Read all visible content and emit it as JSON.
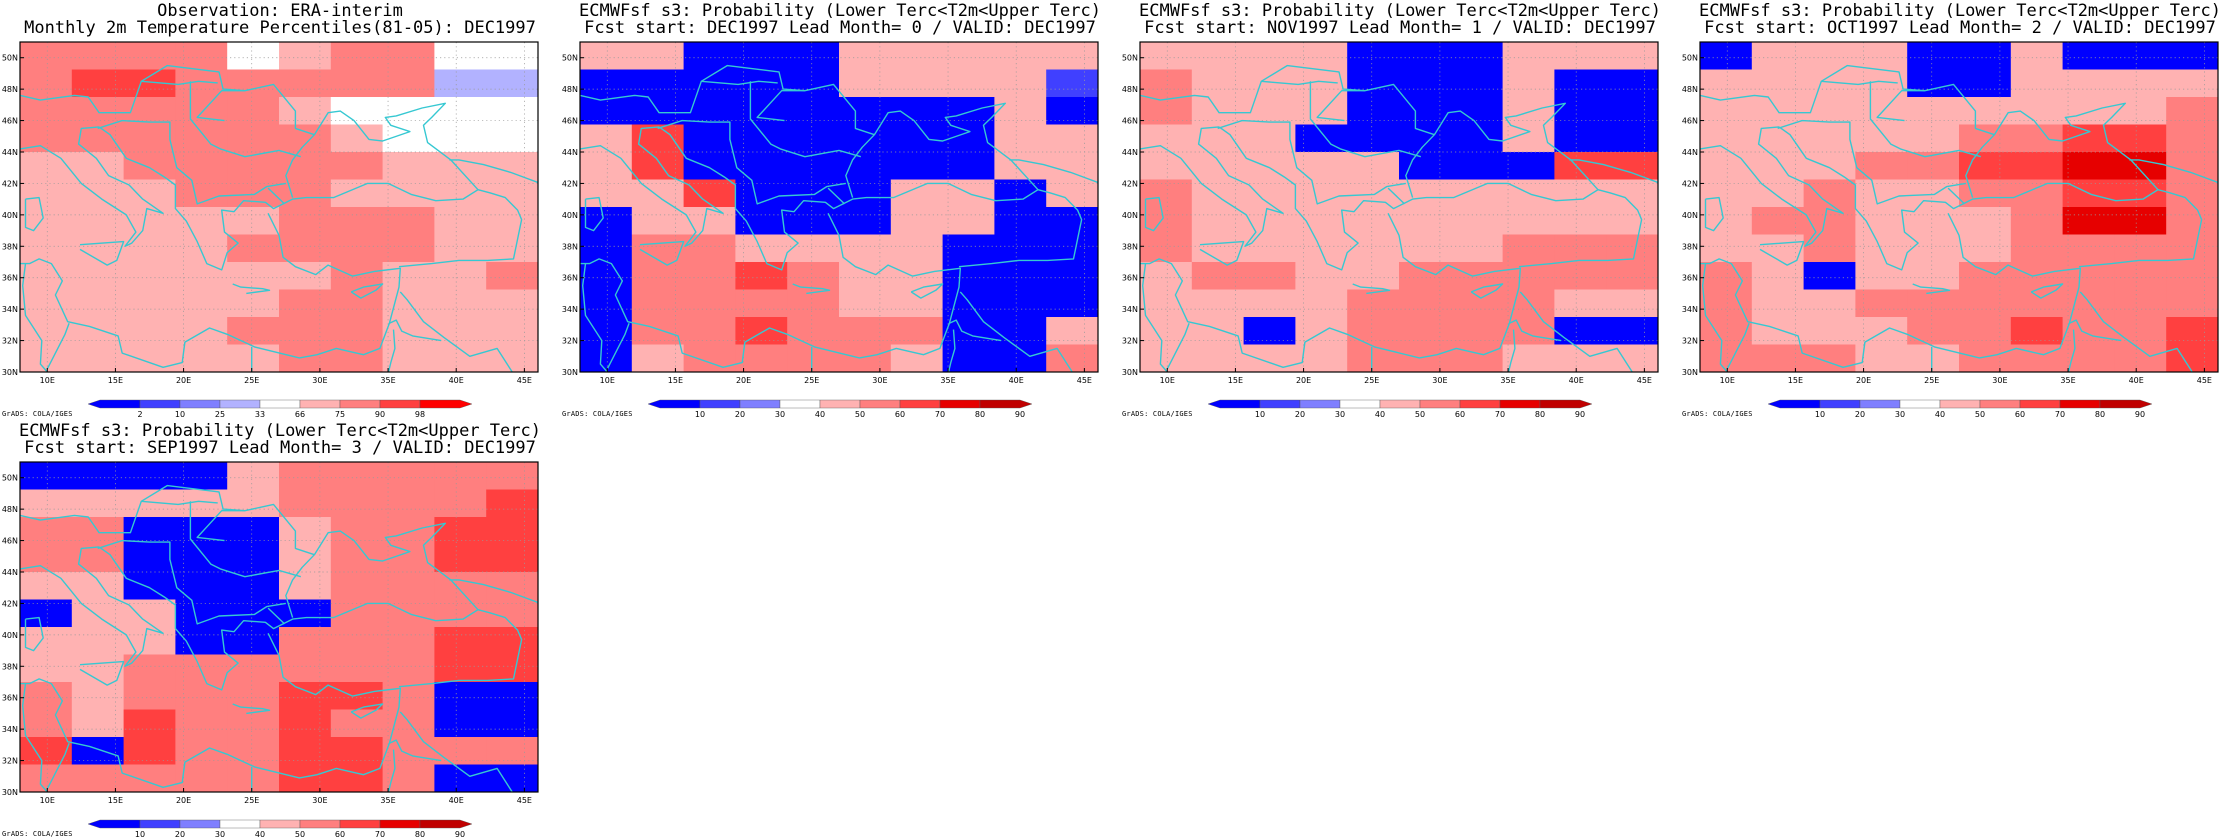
{
  "credit": "GrADS: COLA/IGES",
  "lon_labels": [
    "10E",
    "15E",
    "20E",
    "25E",
    "30E",
    "35E",
    "40E",
    "45E"
  ],
  "lat_labels": [
    "30N",
    "32N",
    "34N",
    "36N",
    "38N",
    "40N",
    "42N",
    "44N",
    "46N",
    "48N",
    "50N"
  ],
  "colors": {
    "coast": "#36c8d2",
    "obs_scale": [
      "#0000ff",
      "#4040ff",
      "#7f7fff",
      "#b2b2ff",
      "#ffffff",
      "#ffb2b2",
      "#ff7f7f",
      "#ff4040",
      "#ff0000"
    ],
    "prob_scale": [
      "#0000ff",
      "#4040ff",
      "#7f7fff",
      "#ffffff",
      "#ffb2b2",
      "#ff7f7f",
      "#ff4040",
      "#e60000",
      "#c00000"
    ]
  },
  "panels": [
    {
      "name": "observation",
      "title1": "Observation: ERA-interim",
      "title2": "Monthly 2m Temperature Percentiles(81-05): DEC1997",
      "colorbar_labels": [
        "2",
        "10",
        "25",
        "33",
        "66",
        "75",
        "90",
        "98"
      ],
      "grid_legend": "rows from 51N (top) to 30N (bottom), columns from 8E to 46E; digit = colour class",
      "grid": [
        "6666456644",
        "6776666633",
        "6666654444",
        "6666665444",
        "5566666555",
        "5556665555",
        "5555566655",
        "5555666655",
        "5555556556",
        "5555566555",
        "5555666555",
        "5555566555"
      ]
    },
    {
      "name": "lead-0",
      "title1": "ECMWFsf s3: Probability (Lower Terc<T2m<Upper Terc)",
      "title2": "Fcst start: DEC1997  Lead Month= 0 / VALID: DEC1997",
      "colorbar_labels": [
        "10",
        "20",
        "30",
        "40",
        "50",
        "60",
        "70",
        "80",
        "90"
      ],
      "grid": [
        "4400044444",
        "0000044441",
        "0000000040",
        "4600000044",
        "4600000044",
        "4460004404",
        "0440004400",
        "0554444000",
        "0556544000",
        "0555544000",
        "0556555004",
        "0455554005"
      ]
    },
    {
      "name": "lead-1",
      "title1": "ECMWFsf s3: Probability (Lower Terc<T2m<Upper Terc)",
      "title2": "Fcst start: NOV1997  Lead Month= 1 / VALID: DEC1997",
      "colorbar_labels": [
        "10",
        "20",
        "30",
        "40",
        "50",
        "60",
        "70",
        "80",
        "90"
      ],
      "grid": [
        "4444000444",
        "5444000400",
        "5444000400",
        "4440000400",
        "4444400066",
        "5444444444",
        "5444444444",
        "5444444555",
        "4554455555",
        "4444555544",
        "4404555500",
        "4444555444"
      ]
    },
    {
      "name": "lead-2",
      "title1": "ECMWFsf s3: Probability (Lower Terc<T2m<Upper Terc)",
      "title2": "Fcst start: OCT1997  Lead Month= 2 / VALID: DEC1997",
      "colorbar_labels": [
        "10",
        "20",
        "30",
        "40",
        "50",
        "60",
        "70",
        "80",
        "90"
      ],
      "grid": [
        "0444004000",
        "4444004444",
        "4444444445",
        "4444455665",
        "4445566775",
        "4454455665",
        "4554445775",
        "4454445555",
        "5404455555",
        "5445555555",
        "5444556556",
        "5554455556"
      ]
    },
    {
      "name": "lead-3",
      "title1": "ECMWFsf s3: Probability (Lower Terc<T2m<Upper Terc)",
      "title2": "Fcst start: SEP1997  Lead Month= 3 / VALID: DEC1997",
      "colorbar_labels": [
        "10",
        "20",
        "30",
        "40",
        "50",
        "60",
        "70",
        "80",
        "90"
      ],
      "grid": [
        "0000455555",
        "4444455556",
        "5500045566",
        "5500045566",
        "4400045555",
        "0440005555",
        "4440055566",
        "4455555566",
        "5455566500",
        "5465565500",
        "6065566555",
        "5555566500"
      ]
    }
  ]
}
